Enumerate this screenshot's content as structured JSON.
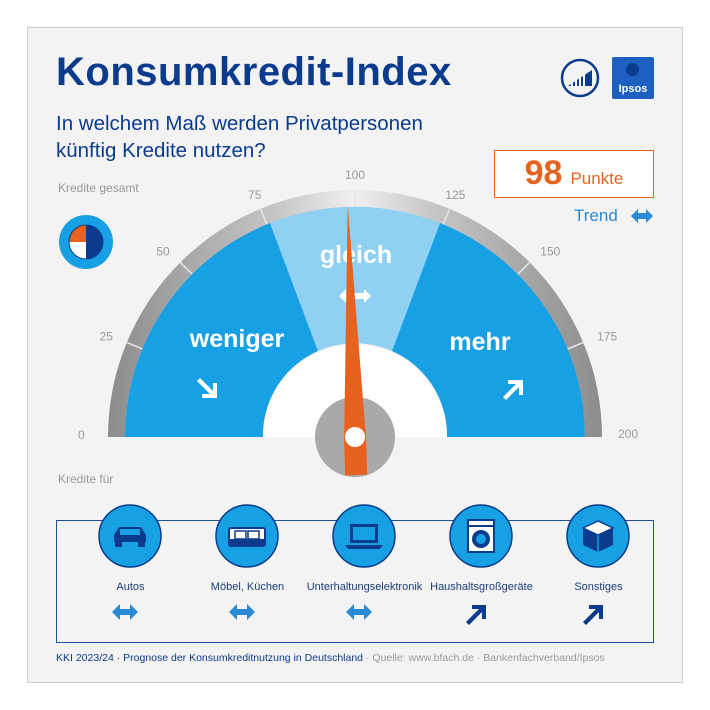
{
  "header": {
    "title": "Konsumkredit-Index",
    "subtitle_line1": "In welchem Maß werden Privatpersonen",
    "subtitle_line2": "künftig Kredite nutzen?"
  },
  "gauge": {
    "section_label": "Kredite gesamt",
    "ticks": [
      "0",
      "25",
      "50",
      "75",
      "100",
      "125",
      "150",
      "175",
      "200"
    ],
    "scale_min": 0,
    "scale_max": 200,
    "needle_value": 98,
    "zones": {
      "left": "weniger",
      "center": "gleich",
      "right": "mehr"
    }
  },
  "score": {
    "value": "98",
    "unit": "Punkte",
    "trend_label": "Trend",
    "trend_icon": "double-arrow-horizontal-icon"
  },
  "categories": {
    "section_label": "Kredite für",
    "items": [
      {
        "label": "Autos",
        "icon": "car-icon",
        "trend": "double-arrow-horizontal-icon"
      },
      {
        "label": "Möbel, Küchen",
        "icon": "sofa-icon",
        "trend": "double-arrow-horizontal-icon"
      },
      {
        "label": "Unterhaltungselektronik",
        "icon": "laptop-icon",
        "trend": "double-arrow-horizontal-icon"
      },
      {
        "label": "Haushaltsgroßgeräte",
        "icon": "washing-machine-icon",
        "trend": "arrow-up-right-icon"
      },
      {
        "label": "Sonstiges",
        "icon": "box-icon",
        "trend": "arrow-up-right-icon"
      }
    ]
  },
  "footer": {
    "main": "KKI 2023/24 · Prognose der Konsumkreditnutzung in Deutschland",
    "source": " · Quelle: www.bfach.de · Bankenfachverband/Ipsos"
  },
  "colors": {
    "navy": "#0b3b8c",
    "blue": "#17a0e3",
    "light_blue": "#8fd0f3",
    "orange": "#e8621f",
    "grey": "#9a9a9a"
  }
}
